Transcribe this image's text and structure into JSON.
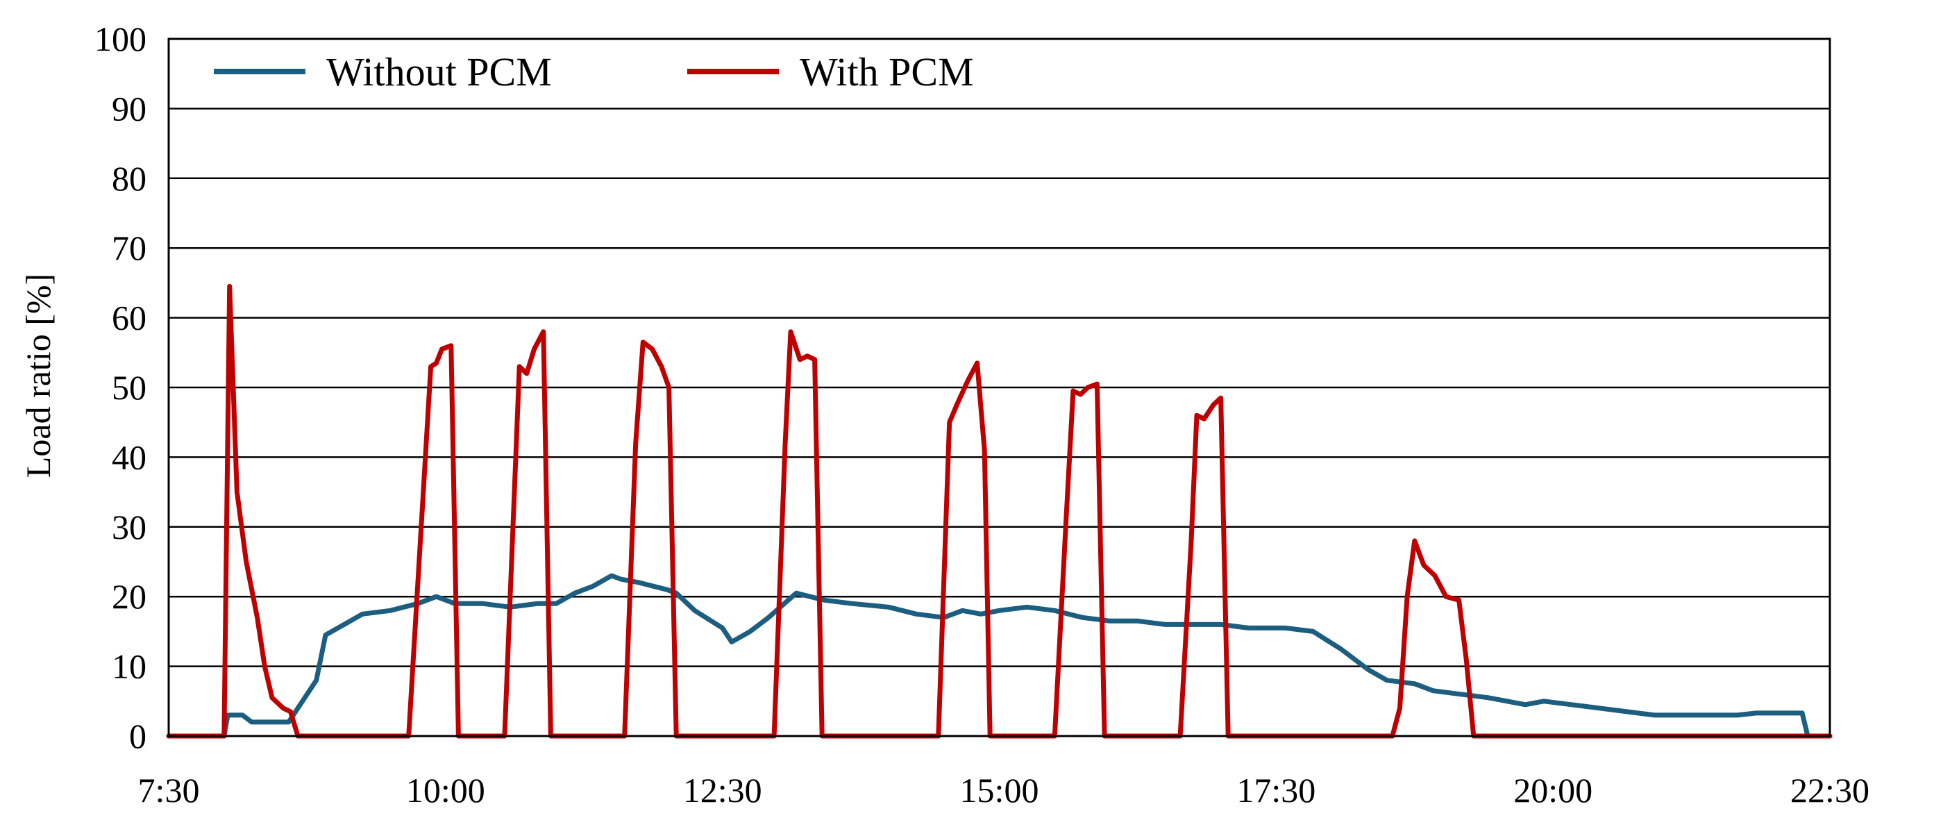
{
  "chart_data": {
    "type": "line",
    "title": "",
    "xlabel": "",
    "ylabel": "Load ratio [%]",
    "xlim": [
      "7:30",
      "22:30"
    ],
    "ylim": [
      0,
      100
    ],
    "x_ticks": [
      "7:30",
      "10:00",
      "12:30",
      "15:00",
      "17:30",
      "20:00",
      "22:30"
    ],
    "y_ticks": [
      "0",
      "10",
      "20",
      "30",
      "40",
      "50",
      "60",
      "70",
      "80",
      "90",
      "100"
    ],
    "grid": "horizontal",
    "legend_position": "top",
    "series": [
      {
        "name": "Without PCM",
        "color": "#1b5e80",
        "points": [
          [
            "7:30",
            0
          ],
          [
            "8:00",
            0
          ],
          [
            "8:02",
            3
          ],
          [
            "8:10",
            3
          ],
          [
            "8:15",
            2
          ],
          [
            "8:25",
            2
          ],
          [
            "8:35",
            2
          ],
          [
            "8:40",
            4
          ],
          [
            "8:50",
            8
          ],
          [
            "8:55",
            14.5
          ],
          [
            "9:05",
            16
          ],
          [
            "9:15",
            17.5
          ],
          [
            "9:30",
            18
          ],
          [
            "9:45",
            19
          ],
          [
            "9:55",
            20
          ],
          [
            "10:05",
            19
          ],
          [
            "10:20",
            19
          ],
          [
            "10:35",
            18.5
          ],
          [
            "10:50",
            19
          ],
          [
            "11:00",
            19
          ],
          [
            "11:10",
            20.5
          ],
          [
            "11:20",
            21.5
          ],
          [
            "11:30",
            23
          ],
          [
            "11:35",
            22.5
          ],
          [
            "11:45",
            22
          ],
          [
            "12:00",
            21
          ],
          [
            "12:05",
            20.5
          ],
          [
            "12:15",
            18
          ],
          [
            "12:30",
            15.5
          ],
          [
            "12:35",
            13.5
          ],
          [
            "12:45",
            15
          ],
          [
            "12:55",
            17
          ],
          [
            "13:10",
            20.5
          ],
          [
            "13:25",
            19.5
          ],
          [
            "13:40",
            19
          ],
          [
            "14:00",
            18.5
          ],
          [
            "14:15",
            17.5
          ],
          [
            "14:30",
            17
          ],
          [
            "14:40",
            18
          ],
          [
            "14:50",
            17.5
          ],
          [
            "15:00",
            18
          ],
          [
            "15:15",
            18.5
          ],
          [
            "15:30",
            18
          ],
          [
            "15:45",
            17
          ],
          [
            "16:00",
            16.5
          ],
          [
            "16:15",
            16.5
          ],
          [
            "16:30",
            16
          ],
          [
            "16:45",
            16
          ],
          [
            "17:00",
            16
          ],
          [
            "17:15",
            15.5
          ],
          [
            "17:35",
            15.5
          ],
          [
            "17:50",
            15
          ],
          [
            "18:05",
            12.5
          ],
          [
            "18:20",
            9.5
          ],
          [
            "18:30",
            8
          ],
          [
            "18:45",
            7.5
          ],
          [
            "18:55",
            6.5
          ],
          [
            "19:10",
            6
          ],
          [
            "19:25",
            5.5
          ],
          [
            "19:35",
            5
          ],
          [
            "19:45",
            4.5
          ],
          [
            "19:55",
            5
          ],
          [
            "20:10",
            4.5
          ],
          [
            "20:25",
            4
          ],
          [
            "20:40",
            3.5
          ],
          [
            "20:55",
            3
          ],
          [
            "21:10",
            3
          ],
          [
            "21:40",
            3
          ],
          [
            "21:50",
            3.3
          ],
          [
            "22:00",
            3.3
          ],
          [
            "22:15",
            3.3
          ],
          [
            "22:18",
            0
          ],
          [
            "22:30",
            0
          ]
        ]
      },
      {
        "name": "With PCM",
        "color": "#c00000",
        "points": [
          [
            "7:30",
            0
          ],
          [
            "8:00",
            0
          ],
          [
            "8:03",
            64.5
          ],
          [
            "8:07",
            35
          ],
          [
            "8:12",
            25
          ],
          [
            "8:18",
            17
          ],
          [
            "8:22",
            10
          ],
          [
            "8:26",
            5.5
          ],
          [
            "8:32",
            4
          ],
          [
            "8:36",
            3.5
          ],
          [
            "8:40",
            0
          ],
          [
            "9:40",
            0
          ],
          [
            "9:52",
            53
          ],
          [
            "9:55",
            53.5
          ],
          [
            "9:58",
            55.5
          ],
          [
            "10:03",
            56
          ],
          [
            "10:07",
            0
          ],
          [
            "10:32",
            0
          ],
          [
            "10:40",
            53
          ],
          [
            "10:44",
            52
          ],
          [
            "10:48",
            55.5
          ],
          [
            "10:53",
            58
          ],
          [
            "10:57",
            0
          ],
          [
            "11:37",
            0
          ],
          [
            "11:43",
            42
          ],
          [
            "11:47",
            56.5
          ],
          [
            "11:52",
            55.5
          ],
          [
            "11:57",
            53
          ],
          [
            "12:01",
            50
          ],
          [
            "12:05",
            0
          ],
          [
            "12:58",
            0
          ],
          [
            "13:04",
            42
          ],
          [
            "13:07",
            58
          ],
          [
            "13:12",
            54
          ],
          [
            "13:16",
            54.5
          ],
          [
            "13:20",
            54
          ],
          [
            "13:24",
            0
          ],
          [
            "14:27",
            0
          ],
          [
            "14:33",
            45
          ],
          [
            "14:37",
            47.5
          ],
          [
            "14:43",
            51
          ],
          [
            "14:48",
            53.5
          ],
          [
            "14:52",
            41
          ],
          [
            "14:55",
            0
          ],
          [
            "15:30",
            0
          ],
          [
            "15:36",
            30
          ],
          [
            "15:40",
            49.5
          ],
          [
            "15:44",
            49
          ],
          [
            "15:48",
            50
          ],
          [
            "15:53",
            50.5
          ],
          [
            "15:57",
            0
          ],
          [
            "16:38",
            0
          ],
          [
            "16:44",
            28
          ],
          [
            "16:47",
            46
          ],
          [
            "16:51",
            45.5
          ],
          [
            "16:56",
            47.5
          ],
          [
            "17:00",
            48.5
          ],
          [
            "17:04",
            0
          ],
          [
            "18:33",
            0
          ],
          [
            "18:37",
            4
          ],
          [
            "18:41",
            20
          ],
          [
            "18:45",
            28
          ],
          [
            "18:50",
            24.5
          ],
          [
            "18:56",
            23
          ],
          [
            "19:02",
            20
          ],
          [
            "19:09",
            19.5
          ],
          [
            "19:13",
            11
          ],
          [
            "19:17",
            0
          ],
          [
            "22:30",
            0
          ]
        ]
      }
    ]
  }
}
